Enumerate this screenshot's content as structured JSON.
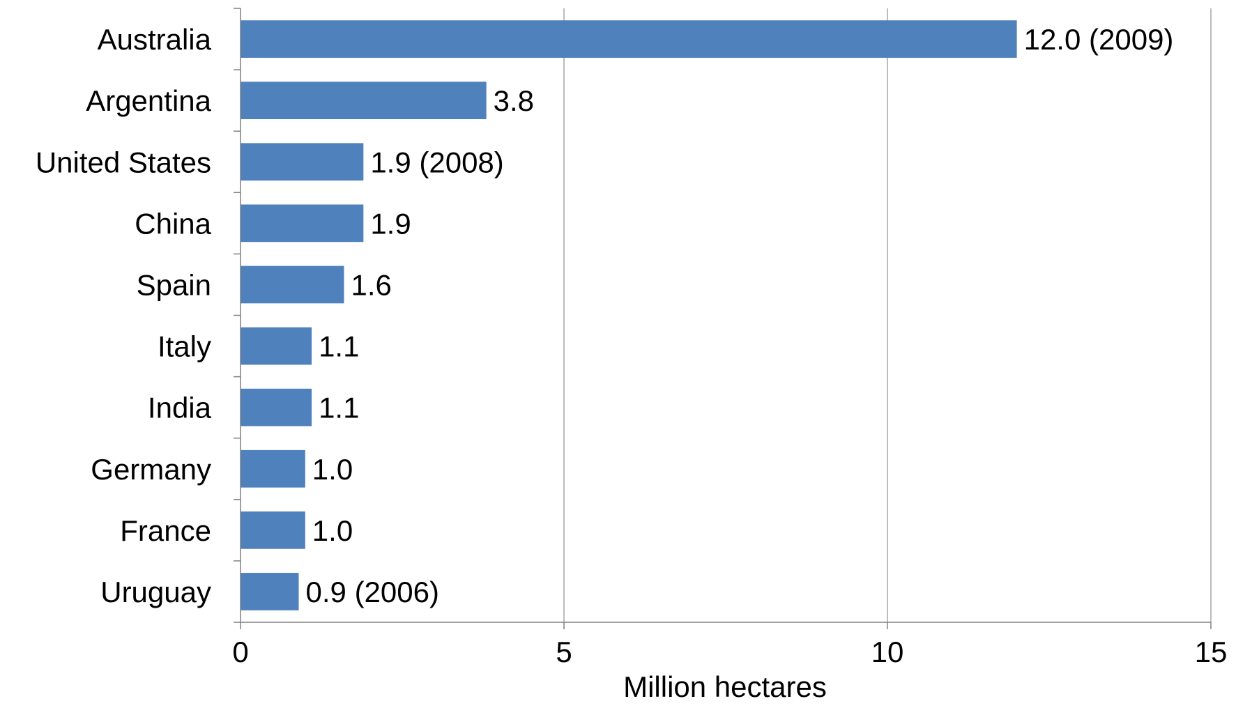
{
  "chart_data": {
    "type": "bar",
    "orientation": "horizontal",
    "categories": [
      "Australia",
      "Argentina",
      "United States",
      "China",
      "Spain",
      "Italy",
      "India",
      "Germany",
      "France",
      "Uruguay"
    ],
    "values": [
      12.0,
      3.8,
      1.9,
      1.9,
      1.6,
      1.1,
      1.1,
      1.0,
      1.0,
      0.9
    ],
    "data_labels": [
      "12.0 (2009)",
      "3.8",
      "1.9 (2008)",
      "1.9",
      "1.6",
      "1.1",
      "1.1",
      "1.0",
      "1.0",
      "0.9 (2006)"
    ],
    "xlabel": "Million hectares",
    "ylabel": "",
    "xlim": [
      0,
      15
    ],
    "xticks": [
      0,
      5,
      10,
      15
    ],
    "x_grid": true,
    "legend": "none",
    "bar_color": "#4F81BD"
  }
}
